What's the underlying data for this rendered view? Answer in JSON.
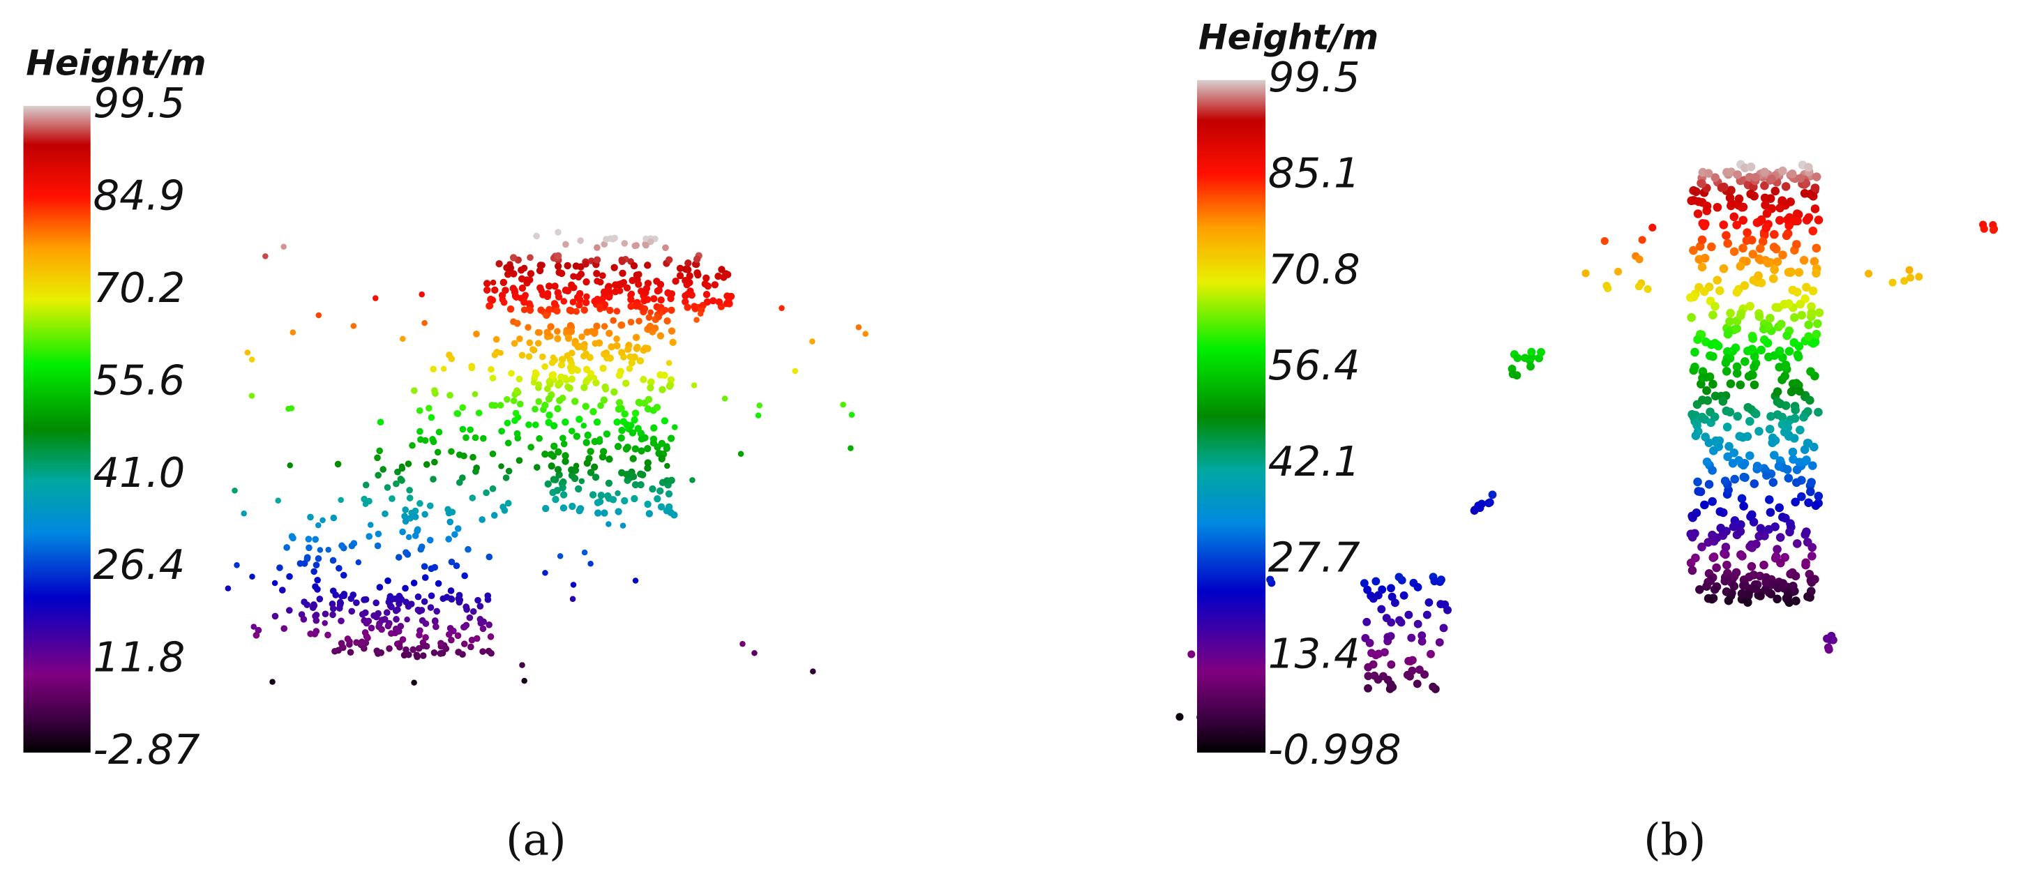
{
  "panels": [
    {
      "colorbar": {
        "title": "Height/m",
        "ticks": [
          "99.5",
          "84.9",
          "70.2",
          "55.6",
          "41.0",
          "26.4",
          "11.8",
          "-2.87"
        ]
      },
      "caption": "(a)"
    },
    {
      "colorbar": {
        "title": "Height/m",
        "ticks": [
          "99.5",
          "85.1",
          "70.8",
          "56.4",
          "42.1",
          "27.7",
          "13.4",
          "-0.998"
        ]
      },
      "caption": "(b)"
    }
  ]
}
